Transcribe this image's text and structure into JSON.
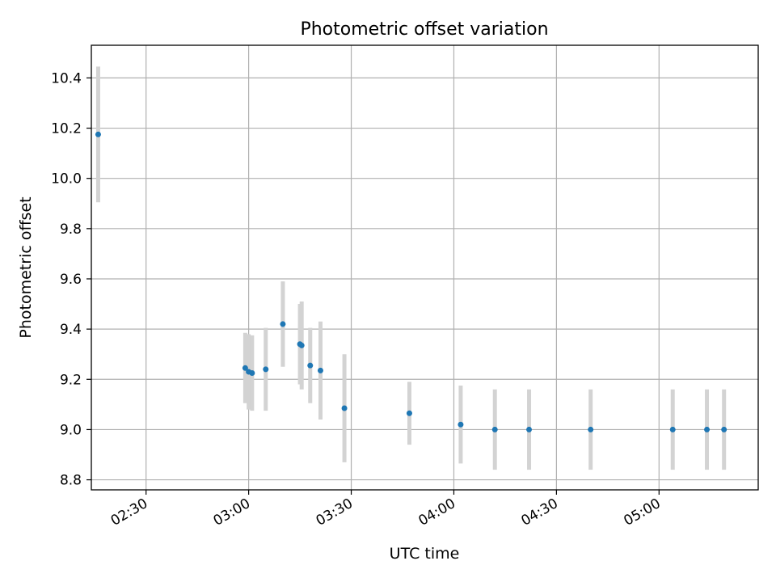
{
  "chart_data": {
    "type": "scatter",
    "title": "Photometric offset variation",
    "xlabel": "UTC time",
    "ylabel": "Photometric offset",
    "x_axis": "time (minutes since midnight UTC)",
    "xlim": [
      "02:14",
      "05:29"
    ],
    "ylim": [
      8.76,
      10.53
    ],
    "x_ticks": [
      "02:30",
      "03:00",
      "03:30",
      "04:00",
      "04:30",
      "05:00"
    ],
    "y_ticks": [
      "8.8",
      "9.0",
      "9.2",
      "9.4",
      "9.6",
      "9.8",
      "10.0",
      "10.2",
      "10.4"
    ],
    "grid": true,
    "legend": "none",
    "point_color": "#1f77b4",
    "errorbar_color": "#d3d3d3",
    "series": [
      {
        "points": [
          {
            "x": "02:16",
            "y": 10.175,
            "err": 0.27
          },
          {
            "x": "02:59",
            "y": 9.245,
            "err": 0.14
          },
          {
            "x": "03:00",
            "y": 9.23,
            "err": 0.15
          },
          {
            "x": "03:01",
            "y": 9.225,
            "err": 0.15
          },
          {
            "x": "03:05",
            "y": 9.24,
            "err": 0.165
          },
          {
            "x": "03:10",
            "y": 9.42,
            "err": 0.17
          },
          {
            "x": "03:15",
            "y": 9.34,
            "err": 0.16
          },
          {
            "x": "03:15:30",
            "y": 9.335,
            "err": 0.175
          },
          {
            "x": "03:18",
            "y": 9.255,
            "err": 0.15
          },
          {
            "x": "03:21",
            "y": 9.235,
            "err": 0.195
          },
          {
            "x": "03:28",
            "y": 9.085,
            "err": 0.215
          },
          {
            "x": "03:47",
            "y": 9.065,
            "err": 0.125
          },
          {
            "x": "04:02",
            "y": 9.02,
            "err": 0.155
          },
          {
            "x": "04:12",
            "y": 9.0,
            "err": 0.16
          },
          {
            "x": "04:22",
            "y": 9.0,
            "err": 0.16
          },
          {
            "x": "04:40",
            "y": 9.0,
            "err": 0.16
          },
          {
            "x": "05:04",
            "y": 9.0,
            "err": 0.16
          },
          {
            "x": "05:14",
            "y": 9.0,
            "err": 0.16
          },
          {
            "x": "05:19",
            "y": 9.0,
            "err": 0.16
          }
        ]
      }
    ]
  }
}
